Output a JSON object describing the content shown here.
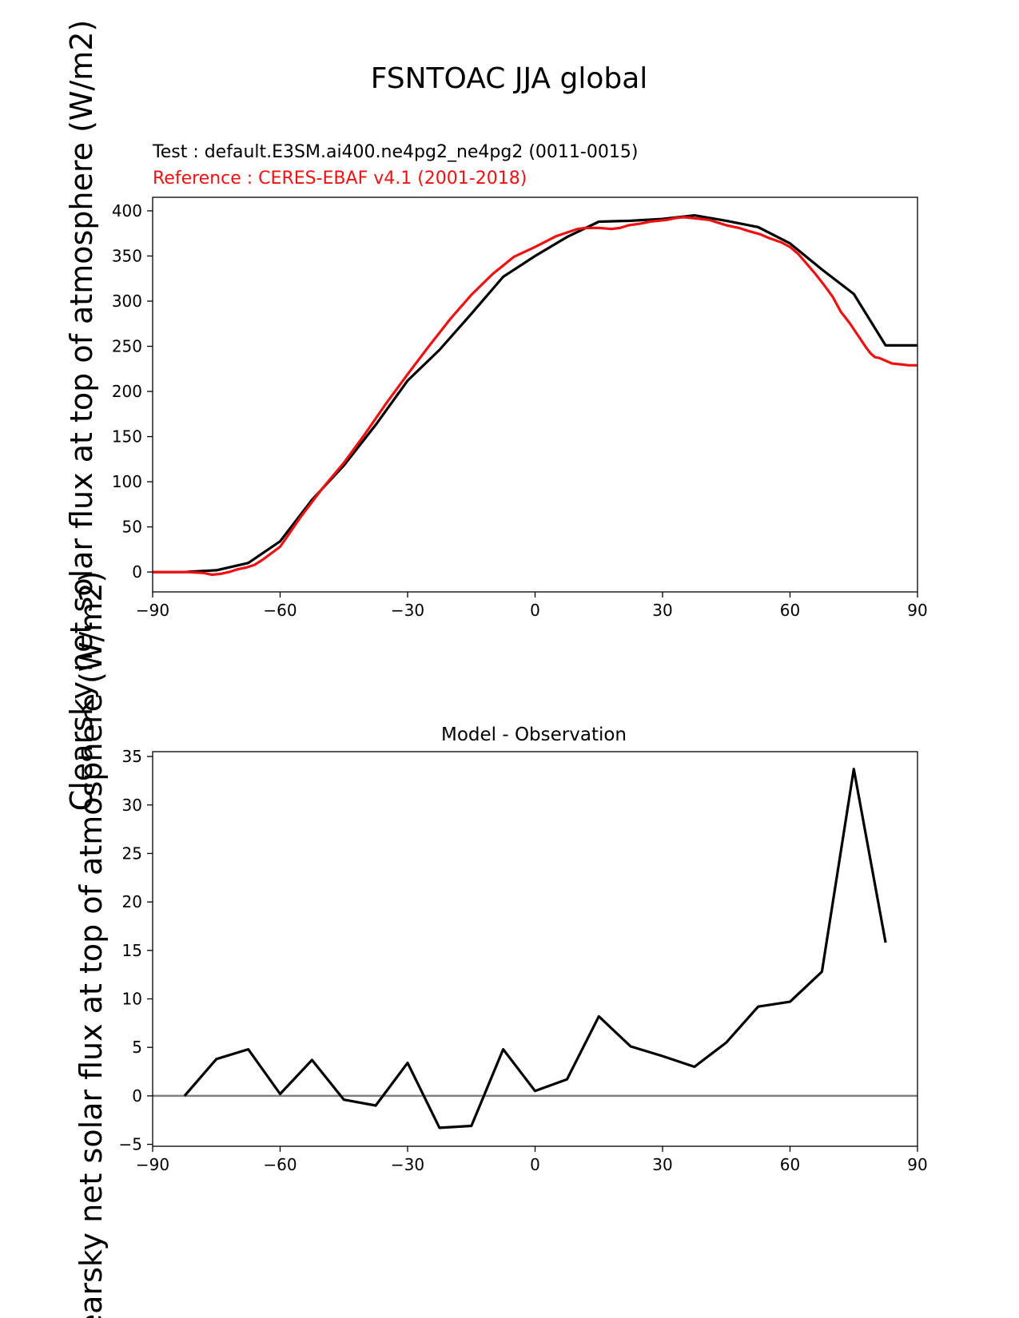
{
  "figure": {
    "title": "FSNTOAC JJA global"
  },
  "chart_data": [
    {
      "type": "line",
      "test_label": "Test : default.E3SM.ai400.ne4pg2_ne4pg2 (0011-0015)",
      "reference_label": "Reference : CERES-EBAF v4.1 (2001-2018)",
      "ylabel": "Clearsky net solar flux at top of atmosphere (W/m2)",
      "xlim": [
        -90,
        90
      ],
      "ylim": [
        -22,
        415
      ],
      "xticks": [
        -90,
        -60,
        -30,
        0,
        30,
        60,
        90
      ],
      "xtick_labels": [
        "−90",
        "−60",
        "−30",
        "0",
        "30",
        "60",
        "90"
      ],
      "yticks": [
        0,
        50,
        100,
        150,
        200,
        250,
        300,
        350,
        400
      ],
      "ytick_labels": [
        "0",
        "50",
        "100",
        "150",
        "200",
        "250",
        "300",
        "350",
        "400"
      ],
      "series": [
        {
          "color": "#000000",
          "x": [
            -90,
            -82.5,
            -75,
            -67.5,
            -60,
            -52.5,
            -45,
            -37.5,
            -30,
            -22.5,
            -15,
            -7.5,
            0,
            7.5,
            15,
            22.5,
            30,
            37.5,
            45,
            52.5,
            60,
            67.5,
            75,
            82.5,
            90
          ],
          "y": [
            0,
            0,
            2,
            10,
            34,
            80,
            118,
            163,
            212,
            246,
            286,
            327,
            350,
            371,
            388,
            389,
            391,
            395,
            389,
            382,
            364,
            335,
            308,
            251,
            251
          ]
        },
        {
          "color": "#ee1111",
          "x": [
            -90,
            -86,
            -82,
            -78,
            -76,
            -74,
            -72,
            -70,
            -68,
            -66,
            -64,
            -60,
            -55,
            -50,
            -45,
            -40,
            -35,
            -30,
            -25,
            -20,
            -15,
            -10,
            -5,
            0,
            5,
            10,
            12,
            15,
            18,
            20,
            22,
            25,
            27,
            29,
            31,
            33,
            35,
            37,
            39,
            41,
            43,
            45,
            48,
            50,
            53,
            55,
            58,
            60,
            62,
            64,
            66,
            68,
            70,
            72,
            74,
            76,
            78,
            79,
            80,
            81,
            82,
            84,
            86,
            88,
            90
          ],
          "y": [
            0,
            0,
            0,
            -1,
            -3,
            -2,
            0,
            3,
            5,
            8,
            14,
            28,
            62,
            93,
            121,
            153,
            187,
            219,
            250,
            280,
            307,
            330,
            349,
            360,
            372,
            380,
            381,
            381,
            380,
            381,
            384,
            386,
            388,
            389,
            390,
            392,
            393,
            392,
            391,
            390,
            387,
            384,
            381,
            378,
            374,
            370,
            365,
            360,
            352,
            341,
            330,
            318,
            305,
            288,
            276,
            262,
            248,
            242,
            238,
            237,
            235,
            231,
            230,
            229,
            229
          ]
        }
      ]
    },
    {
      "type": "line",
      "title": "Model - Observation",
      "xlim": [
        -90,
        90
      ],
      "ylim": [
        -5.2,
        35.5
      ],
      "xticks": [
        -90,
        -60,
        -30,
        0,
        30,
        60,
        90
      ],
      "xtick_labels": [
        "−90",
        "−60",
        "−30",
        "0",
        "30",
        "60",
        "90"
      ],
      "yticks": [
        -5,
        0,
        5,
        10,
        15,
        20,
        25,
        30,
        35
      ],
      "ytick_labels": [
        "−5",
        "0",
        "5",
        "10",
        "15",
        "20",
        "25",
        "30",
        "35"
      ],
      "zero_line_color": "#808080",
      "series": [
        {
          "color": "#000000",
          "x": [
            -82.5,
            -75,
            -67.5,
            -60,
            -52.5,
            -45,
            -37.5,
            -30,
            -22.5,
            -15,
            -7.5,
            0,
            7.5,
            15,
            22.5,
            30,
            37.5,
            45,
            52.5,
            60,
            67.5,
            75,
            82.5
          ],
          "y": [
            0,
            3.8,
            4.8,
            0.2,
            3.7,
            -0.4,
            -1.0,
            3.4,
            -3.3,
            -3.1,
            4.8,
            0.5,
            1.7,
            8.2,
            5.1,
            4.1,
            3.0,
            5.5,
            9.2,
            9.7,
            12.8,
            33.7,
            15.8
          ]
        }
      ]
    }
  ]
}
